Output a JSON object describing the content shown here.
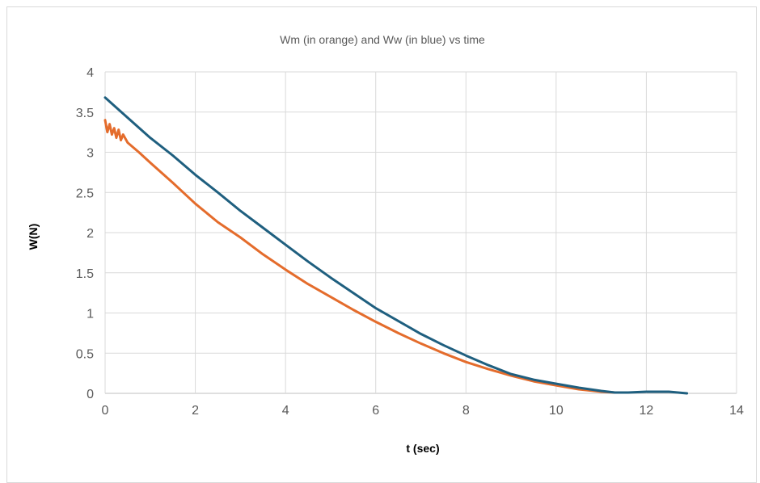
{
  "chart_data": {
    "type": "line",
    "title": "Wm (in orange) and Ww (in blue) vs time",
    "xlabel": "t (sec)",
    "ylabel": "W(N)",
    "xlim": [
      0,
      14
    ],
    "ylim": [
      0,
      4
    ],
    "x_ticks": [
      0,
      2,
      4,
      6,
      8,
      10,
      12,
      14
    ],
    "y_ticks": [
      0,
      0.5,
      1,
      1.5,
      2,
      2.5,
      3,
      3.5,
      4
    ],
    "y_tick_labels": [
      "0",
      "0.5",
      "1",
      "1.5",
      "2",
      "2.5",
      "3",
      "3.5",
      "4"
    ],
    "grid": true,
    "legend": "none",
    "series": [
      {
        "color": "#1f5f7f",
        "x": [
          0,
          0.5,
          1,
          1.5,
          2,
          2.5,
          3,
          3.5,
          4,
          4.5,
          5,
          5.5,
          6,
          6.5,
          7,
          7.5,
          8,
          8.5,
          9,
          9.5,
          10,
          10.5,
          11,
          11.3,
          11.6,
          12,
          12.5,
          12.9
        ],
        "y": [
          3.68,
          3.43,
          3.18,
          2.96,
          2.72,
          2.5,
          2.27,
          2.06,
          1.85,
          1.64,
          1.44,
          1.25,
          1.06,
          0.9,
          0.74,
          0.6,
          0.47,
          0.35,
          0.24,
          0.17,
          0.12,
          0.07,
          0.03,
          0.01,
          0.01,
          0.02,
          0.02,
          0.0
        ]
      },
      {
        "color": "#e46c2c",
        "x": [
          0,
          0.05,
          0.1,
          0.15,
          0.2,
          0.25,
          0.3,
          0.35,
          0.4,
          0.5,
          0.75,
          1,
          1.5,
          2,
          2.5,
          3,
          3.5,
          4,
          4.5,
          5,
          5.5,
          6,
          6.5,
          7,
          7.5,
          8,
          8.5,
          9,
          9.5,
          10,
          10.5,
          11,
          11.3
        ],
        "y": [
          3.4,
          3.25,
          3.35,
          3.22,
          3.3,
          3.18,
          3.28,
          3.15,
          3.22,
          3.12,
          3.0,
          2.87,
          2.62,
          2.36,
          2.13,
          1.94,
          1.73,
          1.54,
          1.36,
          1.2,
          1.04,
          0.89,
          0.75,
          0.62,
          0.5,
          0.39,
          0.3,
          0.22,
          0.15,
          0.1,
          0.05,
          0.02,
          0.01
        ]
      }
    ]
  }
}
